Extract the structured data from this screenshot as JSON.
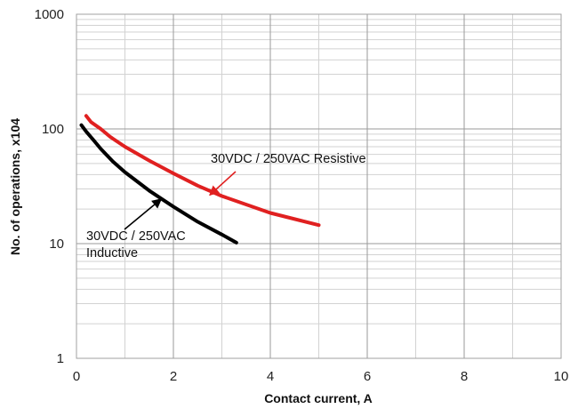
{
  "chart_data": {
    "type": "line",
    "xlabel": "Contact current, A",
    "ylabel": "No. of operations, x104",
    "xlim": [
      0,
      10
    ],
    "ylim": [
      1,
      1000
    ],
    "yscale": "log",
    "grid": true,
    "x_ticks": [
      "0",
      "2",
      "4",
      "6",
      "8",
      "10"
    ],
    "y_ticks": [
      "1",
      "10",
      "100",
      "1000"
    ],
    "series": [
      {
        "name": "30VDC / 250VAC Resistive",
        "color": "#e02020",
        "x": [
          0.2,
          0.3,
          0.5,
          0.7,
          1.0,
          1.5,
          2.0,
          2.5,
          3.0,
          4.0,
          5.0
        ],
        "y": [
          130,
          115,
          100,
          85,
          70,
          53,
          41,
          32,
          26,
          18.5,
          14.5
        ]
      },
      {
        "name": "30VDC / 250VAC Inductive",
        "color": "#000000",
        "x": [
          0.1,
          0.2,
          0.35,
          0.5,
          0.75,
          1.0,
          1.5,
          2.0,
          2.5,
          3.0,
          3.3
        ],
        "y": [
          108,
          95,
          80,
          67,
          52,
          42,
          29,
          21,
          15.5,
          12,
          10.2
        ]
      }
    ],
    "annotations": [
      {
        "id": "resistive",
        "lines": [
          "30VDC / 250VAC Resistive"
        ],
        "arrow_to": [
          2.75,
          26.5
        ],
        "color": "#e02020"
      },
      {
        "id": "inductive",
        "lines": [
          "30VDC / 250VAC",
          "Inductive"
        ],
        "arrow_to": [
          1.75,
          24.5
        ],
        "color": "#000000"
      }
    ]
  }
}
